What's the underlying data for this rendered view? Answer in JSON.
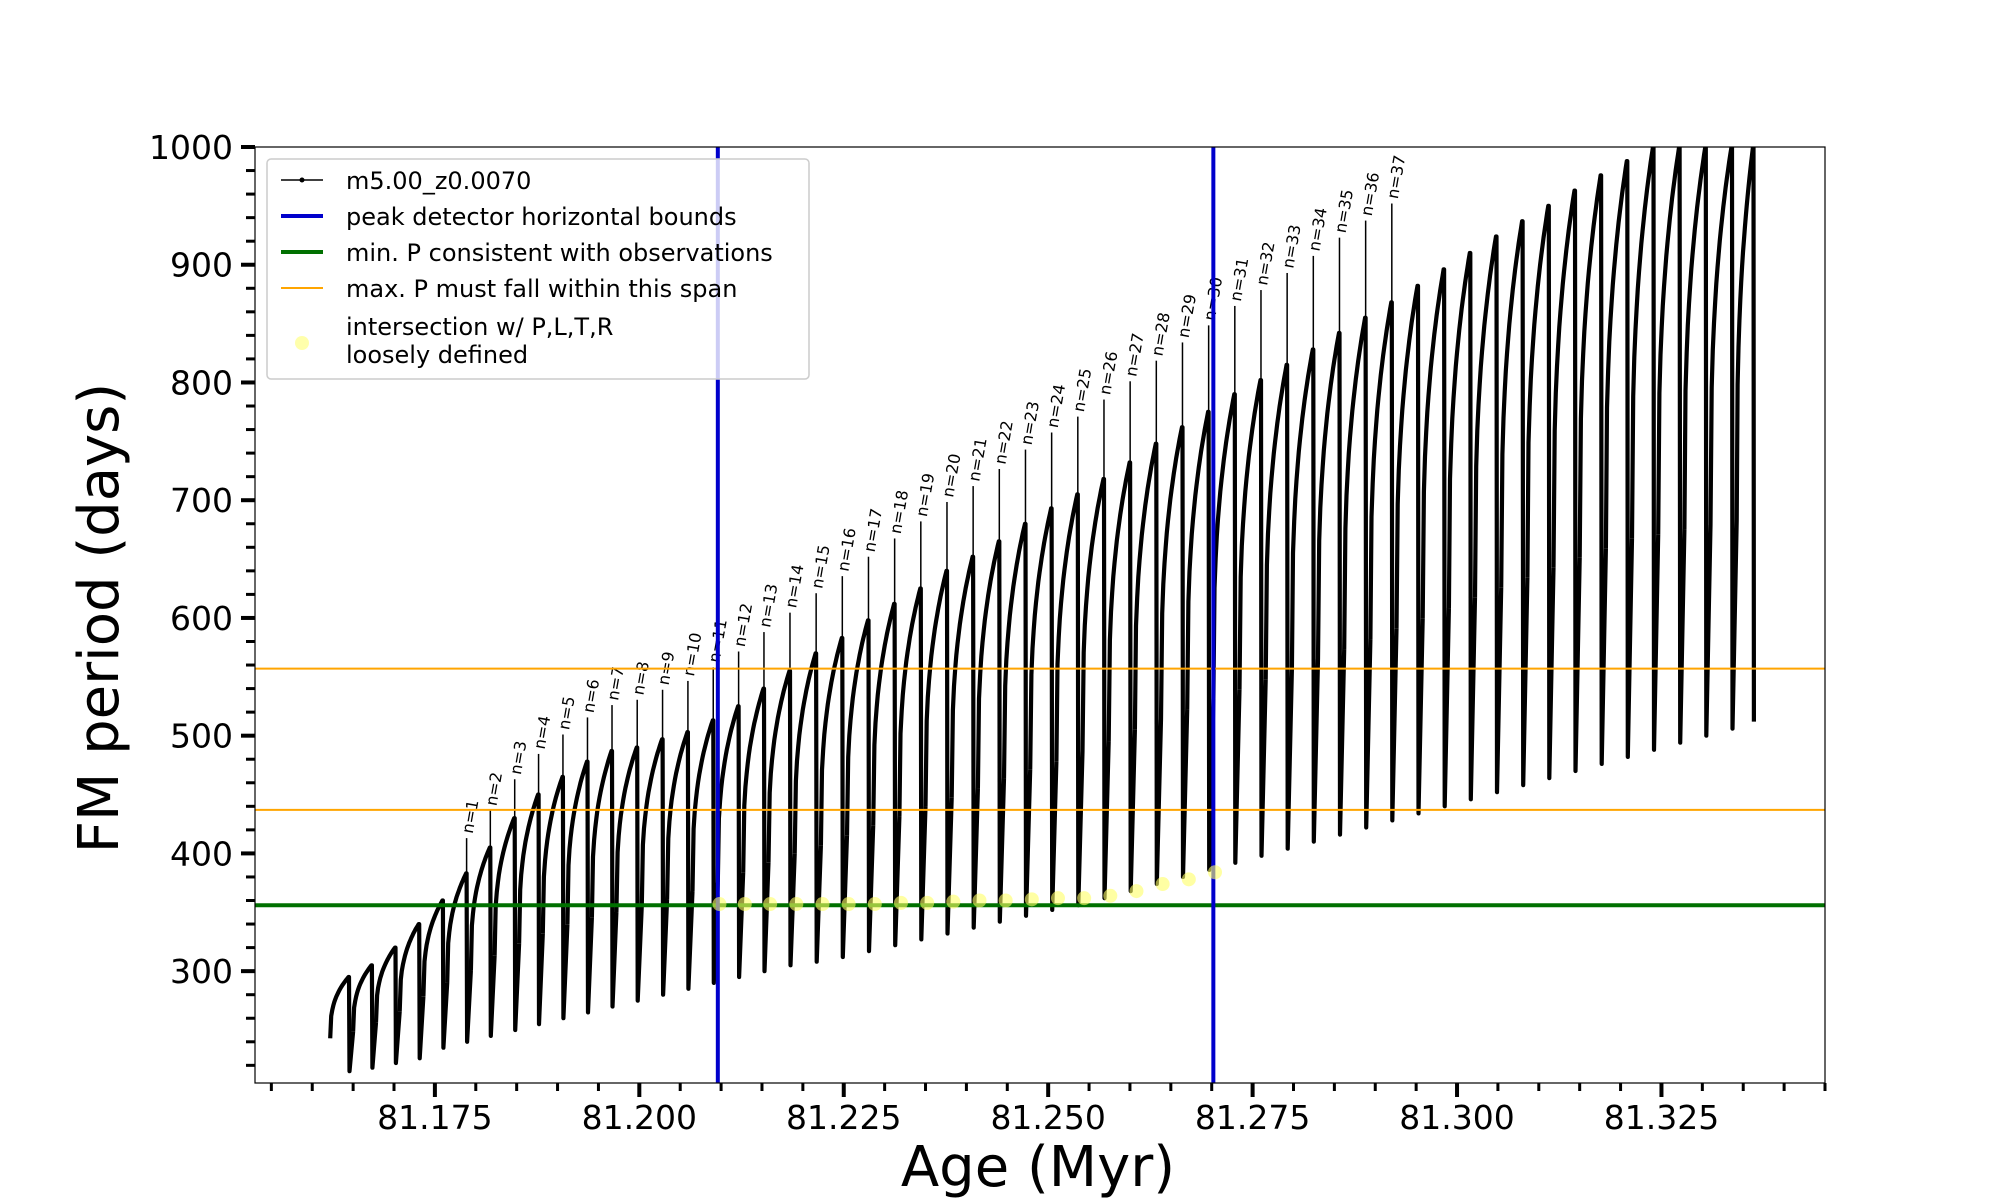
{
  "chart_data": {
    "type": "line",
    "title": "",
    "xlabel": "Age (Myr)",
    "ylabel": "FM period (days)",
    "xlim": [
      81.153,
      81.345
    ],
    "ylim": [
      205,
      1000
    ],
    "xticks": [
      "81.175",
      "81.200",
      "81.225",
      "81.250",
      "81.275",
      "81.300",
      "81.325"
    ],
    "xtick_values": [
      81.175,
      81.2,
      81.225,
      81.25,
      81.275,
      81.3,
      81.325
    ],
    "yticks": [
      "300",
      "400",
      "500",
      "600",
      "700",
      "800",
      "900",
      "1000"
    ],
    "ytick_values": [
      300,
      400,
      500,
      600,
      700,
      800,
      900,
      1000
    ],
    "grid": false,
    "legend_position": "top-left",
    "legend": [
      {
        "label": "m5.00_z0.0070",
        "kind": "line-marker",
        "color": "#000000"
      },
      {
        "label": "peak detector horizontal bounds",
        "kind": "line",
        "color": "#0000cc"
      },
      {
        "label": "min. P consistent with observations",
        "kind": "line",
        "color": "#007000"
      },
      {
        "label": "max. P must fall within this span",
        "kind": "line",
        "color": "#ffa500"
      },
      {
        "label": "intersection w/ P,L,T,R",
        "label2": "loosely defined",
        "kind": "marker",
        "color": "#ffff66"
      }
    ],
    "series_name": "m5.00_z0.0070",
    "series_color": "#000000",
    "pulse_labels": [
      "n=1",
      "n=2",
      "n=3",
      "n=4",
      "n=5",
      "n=6",
      "n=7",
      "n=8",
      "n=9",
      "n=10",
      "n=11",
      "n=12",
      "n=13",
      "n=14",
      "n=15",
      "n=16",
      "n=17",
      "n=18",
      "n=19",
      "n=20",
      "n=21",
      "n=22",
      "n=23",
      "n=24",
      "n=25",
      "n=26",
      "n=27",
      "n=28",
      "n=29",
      "n=30",
      "n=31",
      "n=32",
      "n=33",
      "n=34",
      "n=35",
      "n=36",
      "n=37"
    ],
    "pulses": [
      {
        "start": 81.1622,
        "top": 295,
        "low": 215
      },
      {
        "start": 81.165,
        "top": 305,
        "low": 218
      },
      {
        "start": 81.1678,
        "top": 320,
        "low": 222
      },
      {
        "start": 81.1707,
        "top": 340,
        "low": 226
      },
      {
        "start": 81.1736,
        "top": 360,
        "low": 235
      },
      {
        "start": 81.1765,
        "top": 383,
        "low": 240
      },
      {
        "start": 81.1794,
        "top": 405,
        "low": 245
      },
      {
        "start": 81.1823,
        "top": 430,
        "low": 250
      },
      {
        "start": 81.1853,
        "top": 450,
        "low": 255
      },
      {
        "start": 81.1882,
        "top": 465,
        "low": 260
      },
      {
        "start": 81.1912,
        "top": 478,
        "low": 265
      },
      {
        "start": 81.1942,
        "top": 487,
        "low": 270
      },
      {
        "start": 81.1972,
        "top": 490,
        "low": 275
      },
      {
        "start": 81.2003,
        "top": 497,
        "low": 280
      },
      {
        "start": 81.2034,
        "top": 503,
        "low": 285
      },
      {
        "start": 81.2065,
        "top": 513,
        "low": 290
      },
      {
        "start": 81.2096,
        "top": 525,
        "low": 295
      },
      {
        "start": 81.2127,
        "top": 540,
        "low": 300
      },
      {
        "start": 81.2158,
        "top": 555,
        "low": 305
      },
      {
        "start": 81.219,
        "top": 570,
        "low": 308
      },
      {
        "start": 81.2222,
        "top": 583,
        "low": 312
      },
      {
        "start": 81.2254,
        "top": 598,
        "low": 317
      },
      {
        "start": 81.2286,
        "top": 612,
        "low": 322
      },
      {
        "start": 81.2318,
        "top": 625,
        "low": 327
      },
      {
        "start": 81.235,
        "top": 640,
        "low": 332
      },
      {
        "start": 81.2382,
        "top": 652,
        "low": 337
      },
      {
        "start": 81.2414,
        "top": 665,
        "low": 342
      },
      {
        "start": 81.2446,
        "top": 680,
        "low": 347
      },
      {
        "start": 81.2478,
        "top": 693,
        "low": 352
      },
      {
        "start": 81.251,
        "top": 705,
        "low": 356
      },
      {
        "start": 81.2542,
        "top": 718,
        "low": 362
      },
      {
        "start": 81.2574,
        "top": 732,
        "low": 368
      },
      {
        "start": 81.2606,
        "top": 748,
        "low": 374
      },
      {
        "start": 81.2638,
        "top": 762,
        "low": 380
      },
      {
        "start": 81.267,
        "top": 775,
        "low": 386
      },
      {
        "start": 81.2702,
        "top": 790,
        "low": 392
      },
      {
        "start": 81.2734,
        "top": 802,
        "low": 398
      },
      {
        "start": 81.2766,
        "top": 815,
        "low": 404
      },
      {
        "start": 81.2798,
        "top": 828,
        "low": 410
      },
      {
        "start": 81.283,
        "top": 842,
        "low": 416
      },
      {
        "start": 81.2862,
        "top": 855,
        "low": 422
      },
      {
        "start": 81.2894,
        "top": 868,
        "low": 428
      },
      {
        "start": 81.2926,
        "top": 882,
        "low": 434
      },
      {
        "start": 81.2958,
        "top": 896,
        "low": 440
      },
      {
        "start": 81.299,
        "top": 910,
        "low": 446
      },
      {
        "start": 81.3022,
        "top": 924,
        "low": 452
      },
      {
        "start": 81.3054,
        "top": 937,
        "low": 458
      },
      {
        "start": 81.3086,
        "top": 950,
        "low": 464
      },
      {
        "start": 81.3118,
        "top": 963,
        "low": 470
      },
      {
        "start": 81.315,
        "top": 976,
        "low": 476
      },
      {
        "start": 81.3182,
        "top": 988,
        "low": 482
      },
      {
        "start": 81.3214,
        "top": 1000,
        "low": 488
      },
      {
        "start": 81.3246,
        "top": 1000,
        "low": 494
      },
      {
        "start": 81.3278,
        "top": 1000,
        "low": 500
      },
      {
        "start": 81.331,
        "top": 1000,
        "low": 506
      },
      {
        "start": 81.3342,
        "top": 1000,
        "low": 512
      }
    ],
    "blue_vlines": [
      81.2096,
      81.2702
    ],
    "green_hline": 356,
    "orange_hlines": [
      437,
      557
    ],
    "intersections": [
      {
        "x": 81.2098,
        "y": 357
      },
      {
        "x": 81.2129,
        "y": 357
      },
      {
        "x": 81.216,
        "y": 357
      },
      {
        "x": 81.2192,
        "y": 357
      },
      {
        "x": 81.2224,
        "y": 357
      },
      {
        "x": 81.2256,
        "y": 357
      },
      {
        "x": 81.2288,
        "y": 357
      },
      {
        "x": 81.232,
        "y": 358
      },
      {
        "x": 81.2352,
        "y": 358
      },
      {
        "x": 81.2384,
        "y": 359
      },
      {
        "x": 81.2416,
        "y": 360
      },
      {
        "x": 81.2448,
        "y": 360
      },
      {
        "x": 81.248,
        "y": 361
      },
      {
        "x": 81.2512,
        "y": 362
      },
      {
        "x": 81.2544,
        "y": 362
      },
      {
        "x": 81.2576,
        "y": 364
      },
      {
        "x": 81.2608,
        "y": 368
      },
      {
        "x": 81.264,
        "y": 374
      },
      {
        "x": 81.2672,
        "y": 378
      },
      {
        "x": 81.2704,
        "y": 384
      }
    ]
  }
}
